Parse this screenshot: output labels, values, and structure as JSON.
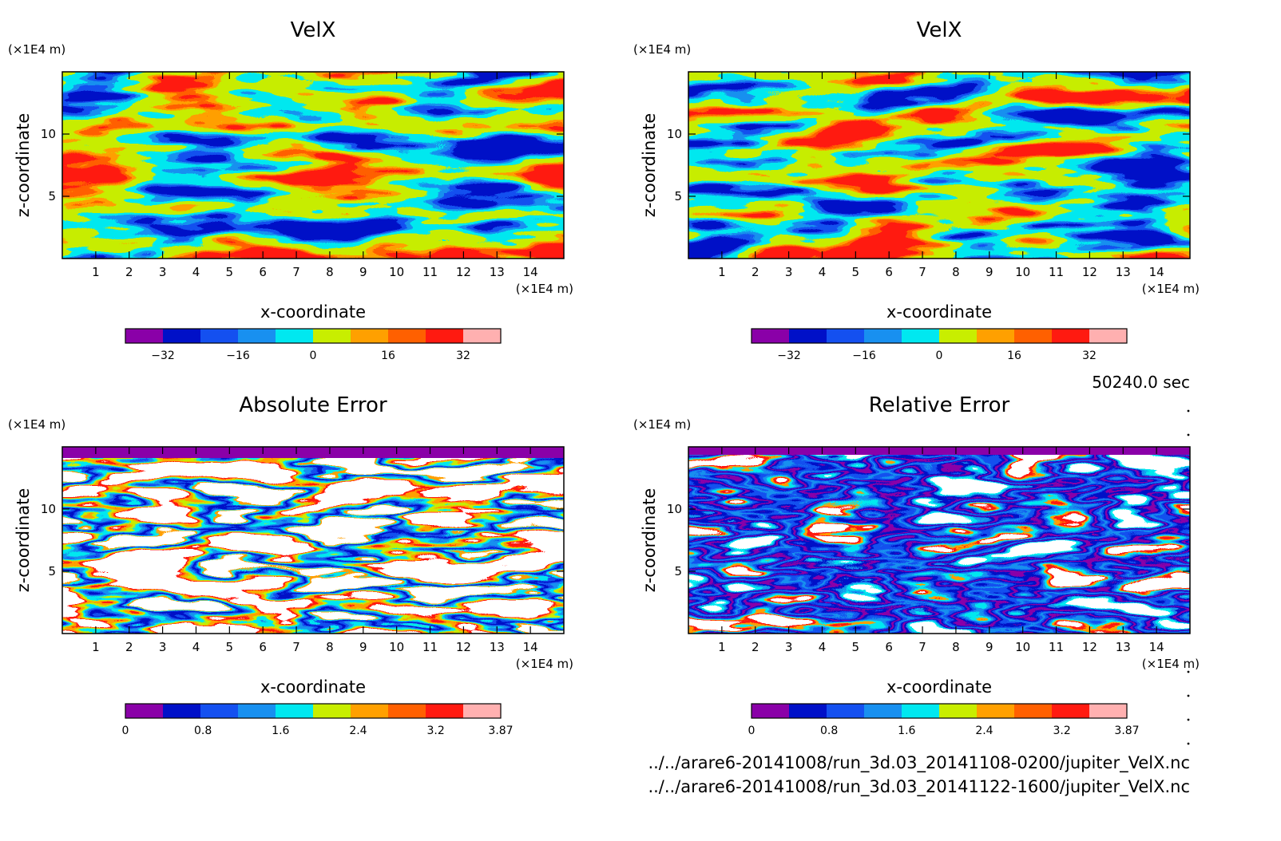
{
  "time_label": "50240.0 sec",
  "files": [
    "../../arare6-20141008/run_3d.03_20141108-0200/jupiter_VelX.nc",
    "../../arare6-20141008/run_3d.03_20141122-1600/jupiter_VelX.nc"
  ],
  "colors": {
    "velx": [
      "#8a00a8",
      "#0010c8",
      "#1450f0",
      "#1890f0",
      "#00e8f0",
      "#c8ee00",
      "#ffa000",
      "#ff6000",
      "#ff1a10",
      "#ffb0b0"
    ],
    "error": [
      "#8a00a8",
      "#0010c8",
      "#1450f0",
      "#1890f0",
      "#00e8f0",
      "#c8ee00",
      "#ffa000",
      "#ff6000",
      "#ff1a10",
      "#ffb0b0"
    ]
  },
  "chart_data": [
    {
      "type": "heatmap",
      "title": "VelX",
      "xlabel": "x-coordinate",
      "ylabel": "z-coordinate",
      "x_unit": "(×1E4 m)",
      "y_unit": "(×1E4 m)",
      "xlim": [
        0,
        15
      ],
      "ylim": [
        0,
        15
      ],
      "x_ticks": [
        "1",
        "2",
        "3",
        "4",
        "5",
        "6",
        "7",
        "8",
        "9",
        "10",
        "11",
        "12",
        "13",
        "14"
      ],
      "y_ticks": [
        "5",
        "10"
      ],
      "colorbar": {
        "range": [
          -40,
          40
        ],
        "tick_values": [
          -32,
          -16,
          0,
          16,
          32
        ],
        "tick_labels": [
          "−32",
          "−16",
          "0",
          "16",
          "32"
        ]
      }
    },
    {
      "type": "heatmap",
      "title": "VelX",
      "xlabel": "x-coordinate",
      "ylabel": "z-coordinate",
      "x_unit": "(×1E4 m)",
      "y_unit": "(×1E4 m)",
      "xlim": [
        0,
        15
      ],
      "ylim": [
        0,
        15
      ],
      "x_ticks": [
        "1",
        "2",
        "3",
        "4",
        "5",
        "6",
        "7",
        "8",
        "9",
        "10",
        "11",
        "12",
        "13",
        "14"
      ],
      "y_ticks": [
        "5",
        "10"
      ],
      "colorbar": {
        "range": [
          -40,
          40
        ],
        "tick_values": [
          -32,
          -16,
          0,
          16,
          32
        ],
        "tick_labels": [
          "−32",
          "−16",
          "0",
          "16",
          "32"
        ]
      }
    },
    {
      "type": "heatmap",
      "title": "Absolute Error",
      "xlabel": "x-coordinate",
      "ylabel": "z-coordinate",
      "x_unit": "(×1E4 m)",
      "y_unit": "(×1E4 m)",
      "xlim": [
        0,
        15
      ],
      "ylim": [
        0,
        15
      ],
      "x_ticks": [
        "1",
        "2",
        "3",
        "4",
        "5",
        "6",
        "7",
        "8",
        "9",
        "10",
        "11",
        "12",
        "13",
        "14"
      ],
      "y_ticks": [
        "5",
        "10"
      ],
      "colorbar": {
        "range": [
          0,
          3.87
        ],
        "tick_values": [
          0,
          0.8,
          1.6,
          2.4,
          3.2,
          3.87
        ],
        "tick_labels": [
          "0",
          "0.8",
          "1.6",
          "2.4",
          "3.2",
          "3.87"
        ]
      }
    },
    {
      "type": "heatmap",
      "title": "Relative Error",
      "xlabel": "x-coordinate",
      "ylabel": "z-coordinate",
      "x_unit": "(×1E4 m)",
      "y_unit": "(×1E4 m)",
      "xlim": [
        0,
        15
      ],
      "ylim": [
        0,
        15
      ],
      "x_ticks": [
        "1",
        "2",
        "3",
        "4",
        "5",
        "6",
        "7",
        "8",
        "9",
        "10",
        "11",
        "12",
        "13",
        "14"
      ],
      "y_ticks": [
        "5",
        "10"
      ],
      "colorbar": {
        "range": [
          0,
          3.87
        ],
        "tick_values": [
          0,
          0.8,
          1.6,
          2.4,
          3.2,
          3.87
        ],
        "tick_labels": [
          "0",
          "0.8",
          "1.6",
          "2.4",
          "3.2",
          "3.87"
        ]
      }
    }
  ]
}
